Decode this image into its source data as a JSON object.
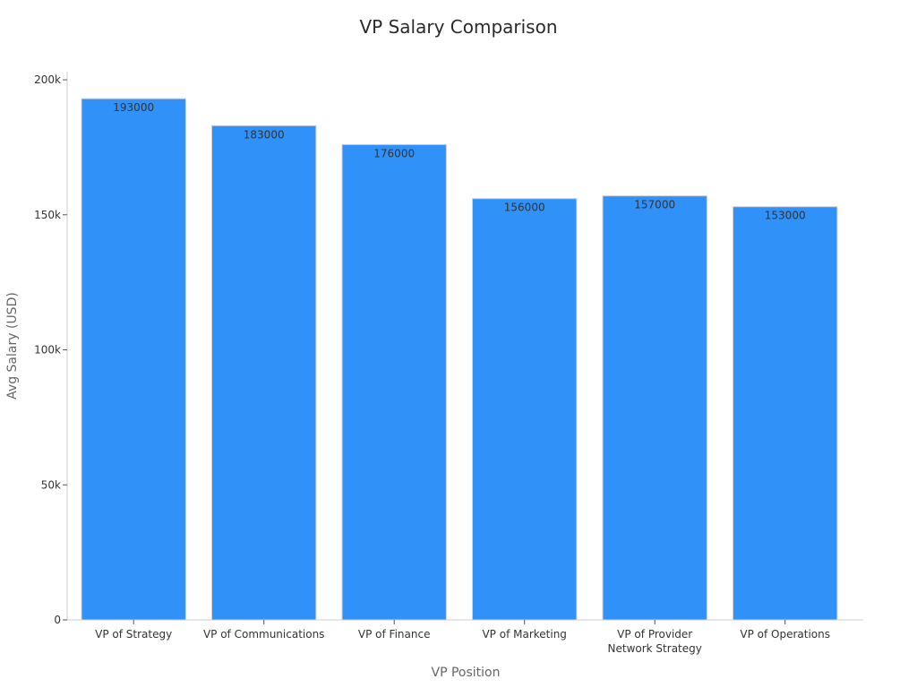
{
  "chart_data": {
    "type": "bar",
    "title": "VP Salary Comparison",
    "xlabel": "VP Position",
    "ylabel": "Avg Salary (USD)",
    "categories": [
      [
        "VP of Strategy"
      ],
      [
        "VP of Communications"
      ],
      [
        "VP of Finance"
      ],
      [
        "VP of Marketing"
      ],
      [
        "VP of Provider",
        "Network Strategy"
      ],
      [
        "VP of Operations"
      ]
    ],
    "values": [
      193000,
      183000,
      176000,
      156000,
      157000,
      153000
    ],
    "data_labels": [
      "193000",
      "183000",
      "176000",
      "156000",
      "157000",
      "153000"
    ],
    "yticks": [
      0,
      50000,
      100000,
      150000,
      200000
    ],
    "ytick_labels": [
      "0",
      "50k",
      "100k",
      "150k",
      "200k"
    ],
    "ylim": [
      0,
      203000
    ],
    "grid": false,
    "legend": "none",
    "bar_color": "#3091f8",
    "bar_edge_color": "#d0d0d0"
  }
}
